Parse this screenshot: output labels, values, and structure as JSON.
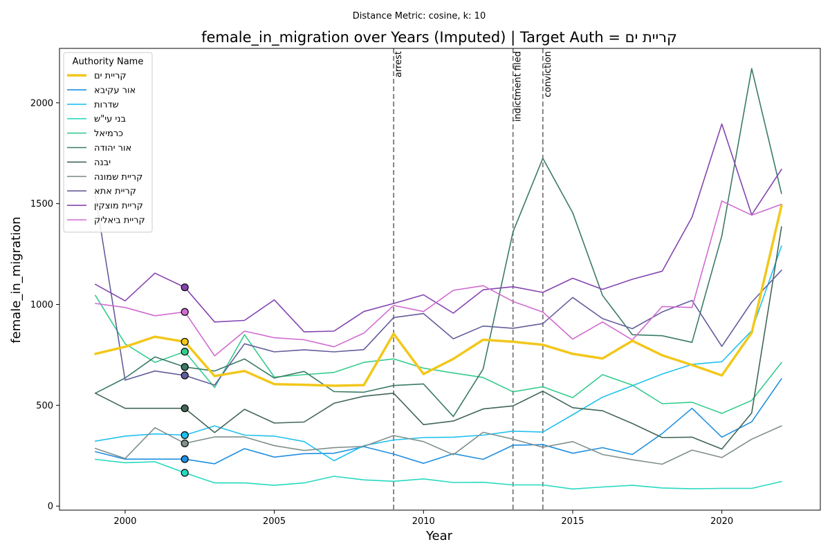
{
  "chart_data": {
    "type": "line",
    "suptitle": "Distance Metric: cosine, k: 10",
    "title": "female_in_migration over Years (Imputed) | Target Auth = קריית ים",
    "xlabel": "Year",
    "ylabel": "female_in_migration",
    "xlim": [
      1997.8,
      2023.3
    ],
    "ylim": [
      -20,
      2270
    ],
    "xticks": [
      2000,
      2005,
      2010,
      2015,
      2020
    ],
    "yticks": [
      0,
      500,
      1000,
      1500,
      2000
    ],
    "legend_title": "Authority Name",
    "legend_placement": "top-left",
    "events": [
      {
        "year": 2009,
        "label": "arrest"
      },
      {
        "year": 2013,
        "label": "indictment filed"
      },
      {
        "year": 2014,
        "label": "conviction"
      }
    ],
    "x": [
      1999,
      2000,
      2001,
      2002,
      2003,
      2004,
      2005,
      2006,
      2007,
      2008,
      2009,
      2010,
      2011,
      2012,
      2013,
      2014,
      2015,
      2016,
      2017,
      2018,
      2019,
      2020,
      2021,
      2022
    ],
    "marker_year": 2002,
    "series": [
      {
        "name": "קריית ים",
        "color": "#f2c71a",
        "width": 3.5,
        "target": true,
        "values": [
          755,
          790,
          840,
          815,
          645,
          670,
          605,
          602,
          597,
          600,
          855,
          655,
          730,
          825,
          815,
          800,
          755,
          732,
          820,
          748,
          700,
          648,
          860,
          1490
        ]
      },
      {
        "name": "אור עקיבא",
        "color": "#1f8fe0",
        "width": 1.6,
        "values": [
          270,
          233,
          233,
          233,
          210,
          285,
          243,
          260,
          262,
          295,
          258,
          212,
          260,
          232,
          302,
          305,
          262,
          290,
          256,
          360,
          485,
          342,
          418,
          632
        ]
      },
      {
        "name": "שדרות",
        "color": "#20c0f0",
        "width": 1.6,
        "values": [
          322,
          347,
          358,
          352,
          398,
          352,
          347,
          320,
          225,
          300,
          328,
          340,
          342,
          352,
          372,
          367,
          453,
          540,
          597,
          655,
          703,
          716,
          870,
          1290
        ]
      },
      {
        "name": "בני עי\"ש",
        "color": "#26d9c0",
        "width": 1.6,
        "values": [
          232,
          215,
          220,
          165,
          115,
          115,
          103,
          115,
          148,
          130,
          123,
          135,
          117,
          118,
          105,
          105,
          85,
          95,
          103,
          90,
          86,
          88,
          88,
          122
        ]
      },
      {
        "name": "כרמיאל",
        "color": "#33cc8c",
        "width": 1.6,
        "values": [
          1045,
          805,
          713,
          766,
          588,
          850,
          640,
          652,
          663,
          713,
          730,
          684,
          660,
          638,
          567,
          592,
          538,
          652,
          600,
          508,
          515,
          460,
          524,
          712
        ]
      },
      {
        "name": "אור יהודה",
        "color": "#3a7a66",
        "width": 1.6,
        "values": [
          560,
          635,
          740,
          690,
          670,
          730,
          635,
          668,
          568,
          565,
          598,
          606,
          444,
          680,
          1360,
          1725,
          1455,
          1045,
          850,
          845,
          812,
          1340,
          2170,
          1550
        ]
      },
      {
        "name": "יבנה",
        "color": "#406655",
        "width": 1.6,
        "values": [
          560,
          485,
          485,
          485,
          365,
          480,
          412,
          417,
          510,
          545,
          560,
          404,
          422,
          482,
          497,
          570,
          488,
          473,
          410,
          340,
          342,
          283,
          462,
          1385
        ]
      },
      {
        "name": "קריית שמונה",
        "color": "#7f8f8c",
        "width": 1.6,
        "values": [
          286,
          236,
          389,
          311,
          343,
          343,
          300,
          276,
          290,
          296,
          350,
          320,
          255,
          366,
          332,
          292,
          320,
          256,
          230,
          208,
          278,
          241,
          332,
          398
        ]
      },
      {
        "name": "קריית אתא",
        "color": "#625d9c",
        "width": 1.6,
        "values": [
          1540,
          625,
          670,
          648,
          600,
          805,
          765,
          775,
          765,
          776,
          935,
          955,
          830,
          893,
          882,
          905,
          1035,
          930,
          880,
          963,
          1020,
          792,
          1012,
          1170
        ]
      },
      {
        "name": "קריית מוצקין",
        "color": "#8444b0",
        "width": 1.6,
        "values": [
          1100,
          1018,
          1155,
          1085,
          913,
          921,
          1023,
          864,
          868,
          965,
          1005,
          1048,
          957,
          1073,
          1088,
          1060,
          1130,
          1075,
          1125,
          1165,
          1433,
          1895,
          1445,
          1670
        ]
      },
      {
        "name": "קריית ביאליק",
        "color": "#d06ad0",
        "width": 1.6,
        "values": [
          1005,
          985,
          944,
          963,
          745,
          868,
          835,
          825,
          790,
          858,
          995,
          965,
          1070,
          1093,
          1015,
          962,
          828,
          913,
          824,
          990,
          985,
          1513,
          1443,
          1497
        ]
      }
    ]
  }
}
